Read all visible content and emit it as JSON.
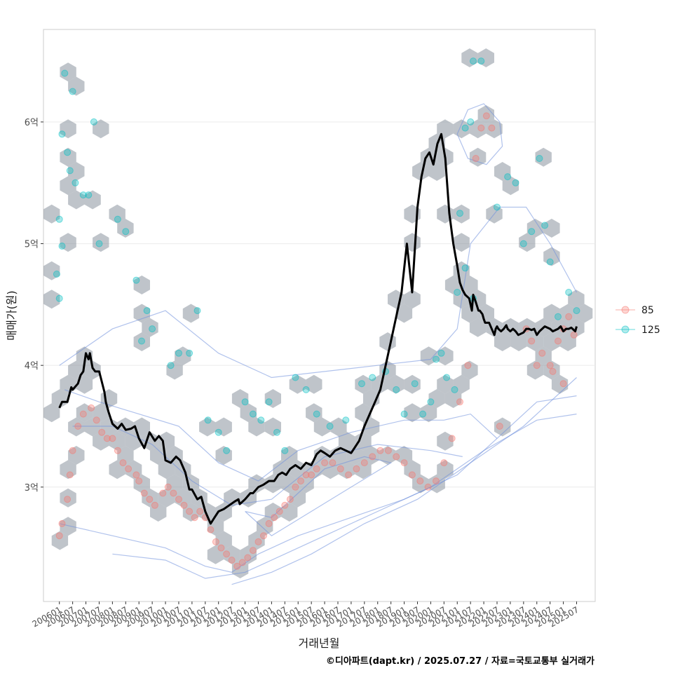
{
  "chart_data": {
    "type": "line",
    "xlabel": "거래년월",
    "ylabel": "매매가(원)",
    "caption": "©디아파트(dapt.kr) / 2025.07.27 / 자료=국토교통부 실거래가",
    "x_ticks": [
      "200601",
      "200607",
      "200701",
      "200707",
      "200801",
      "200807",
      "200901",
      "200907",
      "201001",
      "201007",
      "201101",
      "201107",
      "201201",
      "201207",
      "201301",
      "201307",
      "201401",
      "201407",
      "201501",
      "201507",
      "201601",
      "201607",
      "201701",
      "201707",
      "201801",
      "201807",
      "201901",
      "201907",
      "202001",
      "202007",
      "202101",
      "202107",
      "202201",
      "202207",
      "202301",
      "202307",
      "202401",
      "202407",
      "202501",
      "202507"
    ],
    "y_ticks": [
      {
        "value": 3.0,
        "label": "3억"
      },
      {
        "value": 4.0,
        "label": "4억"
      },
      {
        "value": 5.0,
        "label": "5억"
      },
      {
        "value": 6.0,
        "label": "6억"
      }
    ],
    "xlim": [
      2005.4,
      2026.2
    ],
    "ylim": [
      2.06,
      6.76
    ],
    "grid": true,
    "legend_position": "right",
    "colors": {
      "series_85": "#F8766D",
      "series_125": "#00BFC4",
      "trend": "#000000",
      "hexbin": "#8b949e",
      "contour": "#6f8fdc",
      "grid": "#ebebeb",
      "panel_border": "#cccccc"
    },
    "legend": [
      {
        "label": "85",
        "color": "#F8766D"
      },
      {
        "label": "125",
        "color": "#00BFC4"
      }
    ],
    "trend_line": {
      "x": [
        2006.0,
        2006.1,
        2006.3,
        2006.45,
        2006.5,
        2006.7,
        2006.8,
        2006.9,
        2007.0,
        2007.1,
        2007.15,
        2007.25,
        2007.35,
        2007.5,
        2007.7,
        2007.75,
        2007.85,
        2008.0,
        2008.2,
        2008.35,
        2008.5,
        2008.7,
        2008.85,
        2009.0,
        2009.2,
        2009.4,
        2009.6,
        2009.75,
        2009.9,
        2010.0,
        2010.2,
        2010.4,
        2010.55,
        2010.75,
        2010.9,
        2011.0,
        2011.2,
        2011.35,
        2011.5,
        2011.7,
        2011.85,
        2012.0,
        2012.2,
        2012.4,
        2012.6,
        2012.75,
        2012.8,
        2013.0,
        2013.2,
        2013.3,
        2013.5,
        2013.7,
        2013.9,
        2014.1,
        2014.25,
        2014.4,
        2014.55,
        2014.7,
        2014.9,
        2015.1,
        2015.3,
        2015.5,
        2015.7,
        2015.85,
        2016.0,
        2016.2,
        2016.4,
        2016.6,
        2016.8,
        2017.0,
        2017.3,
        2017.5,
        2017.7,
        2017.9,
        2018.1,
        2018.3,
        2018.5,
        2018.7,
        2018.9,
        2019.1,
        2019.3,
        2019.5,
        2019.65,
        2019.8,
        2019.95,
        2020.1,
        2020.25,
        2020.4,
        2020.55,
        2020.7,
        2020.85,
        2021.0,
        2021.1,
        2021.2,
        2021.3,
        2021.45,
        2021.55,
        2021.6,
        2021.7,
        2021.8,
        2021.85,
        2021.95,
        2022.0,
        2022.05,
        2022.1,
        2022.2,
        2022.3,
        2022.4,
        2022.45,
        2022.5,
        2022.55,
        2022.65,
        2022.75,
        2022.85,
        2022.9,
        2023.0,
        2023.1,
        2023.2,
        2023.3,
        2023.5,
        2023.6,
        2023.7,
        2023.8,
        2023.9,
        2024.0,
        2024.1,
        2024.2,
        2024.3,
        2024.5,
        2024.6,
        2024.8,
        2024.9,
        2025.0,
        2025.1,
        2025.2,
        2025.3,
        2025.45,
        2025.5
      ],
      "y": [
        3.65,
        3.7,
        3.7,
        3.82,
        3.8,
        3.85,
        3.92,
        3.95,
        4.1,
        4.05,
        4.1,
        3.98,
        3.95,
        3.95,
        3.78,
        3.7,
        3.62,
        3.52,
        3.48,
        3.52,
        3.47,
        3.48,
        3.5,
        3.4,
        3.32,
        3.45,
        3.38,
        3.42,
        3.38,
        3.22,
        3.2,
        3.25,
        3.22,
        3.12,
        2.98,
        2.98,
        2.9,
        2.92,
        2.8,
        2.7,
        2.75,
        2.8,
        2.82,
        2.85,
        2.88,
        2.9,
        2.86,
        2.9,
        2.95,
        2.95,
        3.0,
        3.02,
        3.05,
        3.05,
        3.1,
        3.12,
        3.1,
        3.15,
        3.18,
        3.15,
        3.2,
        3.18,
        3.27,
        3.3,
        3.28,
        3.25,
        3.3,
        3.32,
        3.3,
        3.28,
        3.38,
        3.5,
        3.6,
        3.7,
        3.8,
        4.0,
        4.2,
        4.4,
        4.6,
        5.0,
        4.6,
        5.3,
        5.55,
        5.7,
        5.75,
        5.65,
        5.82,
        5.9,
        5.7,
        5.25,
        5.0,
        4.82,
        4.68,
        4.62,
        4.58,
        4.55,
        4.45,
        4.58,
        4.52,
        4.45,
        4.45,
        4.42,
        4.38,
        4.35,
        4.35,
        4.35,
        4.3,
        4.25,
        4.3,
        4.32,
        4.3,
        4.28,
        4.3,
        4.33,
        4.3,
        4.28,
        4.3,
        4.28,
        4.25,
        4.27,
        4.3,
        4.3,
        4.29,
        4.3,
        4.25,
        4.28,
        4.3,
        4.32,
        4.3,
        4.28,
        4.3,
        4.32,
        4.28,
        4.3,
        4.3,
        4.31,
        4.28,
        4.32
      ]
    },
    "series": [
      {
        "name": "85",
        "points": [
          [
            2006.0,
            2.6
          ],
          [
            2006.1,
            2.7
          ],
          [
            2006.3,
            2.9
          ],
          [
            2006.4,
            3.1
          ],
          [
            2006.5,
            3.3
          ],
          [
            2006.7,
            3.5
          ],
          [
            2006.9,
            3.6
          ],
          [
            2007.2,
            3.65
          ],
          [
            2007.4,
            3.55
          ],
          [
            2007.6,
            3.45
          ],
          [
            2007.8,
            3.4
          ],
          [
            2008.0,
            3.4
          ],
          [
            2008.2,
            3.3
          ],
          [
            2008.4,
            3.2
          ],
          [
            2008.6,
            3.15
          ],
          [
            2008.9,
            3.1
          ],
          [
            2009.0,
            3.05
          ],
          [
            2009.2,
            2.95
          ],
          [
            2009.4,
            2.9
          ],
          [
            2009.6,
            2.85
          ],
          [
            2009.9,
            2.95
          ],
          [
            2010.1,
            3.0
          ],
          [
            2010.3,
            2.95
          ],
          [
            2010.5,
            2.9
          ],
          [
            2010.7,
            2.85
          ],
          [
            2010.9,
            2.8
          ],
          [
            2011.1,
            2.75
          ],
          [
            2011.3,
            2.8
          ],
          [
            2011.5,
            2.75
          ],
          [
            2011.7,
            2.65
          ],
          [
            2011.9,
            2.55
          ],
          [
            2012.1,
            2.5
          ],
          [
            2012.3,
            2.45
          ],
          [
            2012.5,
            2.4
          ],
          [
            2012.7,
            2.35
          ],
          [
            2012.9,
            2.38
          ],
          [
            2013.1,
            2.42
          ],
          [
            2013.3,
            2.48
          ],
          [
            2013.5,
            2.55
          ],
          [
            2013.7,
            2.6
          ],
          [
            2013.9,
            2.7
          ],
          [
            2014.1,
            2.75
          ],
          [
            2014.3,
            2.8
          ],
          [
            2014.5,
            2.85
          ],
          [
            2014.7,
            2.9
          ],
          [
            2014.9,
            3.0
          ],
          [
            2015.1,
            3.05
          ],
          [
            2015.3,
            3.1
          ],
          [
            2015.5,
            3.1
          ],
          [
            2015.7,
            3.15
          ],
          [
            2016.0,
            3.2
          ],
          [
            2016.3,
            3.2
          ],
          [
            2016.6,
            3.15
          ],
          [
            2016.9,
            3.1
          ],
          [
            2017.2,
            3.15
          ],
          [
            2017.5,
            3.2
          ],
          [
            2017.8,
            3.25
          ],
          [
            2018.1,
            3.3
          ],
          [
            2018.4,
            3.3
          ],
          [
            2018.7,
            3.25
          ],
          [
            2019.0,
            3.2
          ],
          [
            2019.3,
            3.1
          ],
          [
            2019.6,
            3.05
          ],
          [
            2019.9,
            3.0
          ],
          [
            2020.2,
            3.05
          ],
          [
            2020.5,
            3.2
          ],
          [
            2020.8,
            3.4
          ],
          [
            2021.1,
            3.7
          ],
          [
            2021.4,
            4.0
          ],
          [
            2021.7,
            5.7
          ],
          [
            2021.9,
            5.95
          ],
          [
            2022.1,
            6.05
          ],
          [
            2022.3,
            5.95
          ],
          [
            2022.6,
            3.5
          ],
          [
            2023.6,
            4.3
          ],
          [
            2023.8,
            4.2
          ],
          [
            2024.0,
            4.0
          ],
          [
            2024.2,
            4.1
          ],
          [
            2024.5,
            4.0
          ],
          [
            2024.8,
            4.2
          ],
          [
            2025.0,
            4.3
          ],
          [
            2025.2,
            4.4
          ],
          [
            2025.4,
            4.25
          ],
          [
            2025.0,
            3.85
          ],
          [
            2024.6,
            3.95
          ]
        ]
      },
      {
        "name": "125",
        "points": [
          [
            2006.2,
            6.4
          ],
          [
            2006.5,
            6.25
          ],
          [
            2006.1,
            5.9
          ],
          [
            2006.3,
            5.75
          ],
          [
            2006.4,
            5.6
          ],
          [
            2006.6,
            5.5
          ],
          [
            2006.9,
            5.4
          ],
          [
            2007.1,
            5.4
          ],
          [
            2007.5,
            5.0
          ],
          [
            2007.3,
            6.0
          ],
          [
            2006.0,
            5.2
          ],
          [
            2006.1,
            4.98
          ],
          [
            2005.9,
            4.75
          ],
          [
            2006.0,
            4.55
          ],
          [
            2008.2,
            5.2
          ],
          [
            2008.5,
            5.1
          ],
          [
            2008.9,
            4.7
          ],
          [
            2009.3,
            4.45
          ],
          [
            2009.1,
            4.2
          ],
          [
            2009.5,
            4.3
          ],
          [
            2010.2,
            4.0
          ],
          [
            2010.5,
            4.1
          ],
          [
            2010.9,
            4.1
          ],
          [
            2011.2,
            4.45
          ],
          [
            2011.6,
            3.55
          ],
          [
            2012.0,
            3.45
          ],
          [
            2012.3,
            3.3
          ],
          [
            2013.0,
            3.7
          ],
          [
            2013.3,
            3.6
          ],
          [
            2013.6,
            3.55
          ],
          [
            2013.9,
            3.7
          ],
          [
            2014.2,
            3.45
          ],
          [
            2014.5,
            3.3
          ],
          [
            2014.9,
            3.9
          ],
          [
            2015.3,
            3.8
          ],
          [
            2015.7,
            3.6
          ],
          [
            2016.2,
            3.5
          ],
          [
            2016.8,
            3.55
          ],
          [
            2017.4,
            3.85
          ],
          [
            2017.8,
            3.9
          ],
          [
            2018.3,
            3.95
          ],
          [
            2018.7,
            3.8
          ],
          [
            2019.0,
            3.6
          ],
          [
            2019.4,
            3.85
          ],
          [
            2019.7,
            3.6
          ],
          [
            2020.0,
            3.7
          ],
          [
            2020.2,
            4.05
          ],
          [
            2020.4,
            4.1
          ],
          [
            2020.6,
            3.9
          ],
          [
            2020.9,
            3.8
          ],
          [
            2021.0,
            4.6
          ],
          [
            2021.3,
            4.8
          ],
          [
            2021.6,
            4.55
          ],
          [
            2021.1,
            5.25
          ],
          [
            2021.3,
            5.95
          ],
          [
            2021.5,
            6.0
          ],
          [
            2021.6,
            6.5
          ],
          [
            2021.9,
            6.5
          ],
          [
            2022.5,
            5.3
          ],
          [
            2022.9,
            5.55
          ],
          [
            2023.2,
            5.5
          ],
          [
            2023.5,
            5.0
          ],
          [
            2023.8,
            5.1
          ],
          [
            2024.1,
            5.7
          ],
          [
            2024.3,
            5.15
          ],
          [
            2024.5,
            4.85
          ],
          [
            2024.8,
            4.4
          ],
          [
            2025.2,
            4.6
          ],
          [
            2025.5,
            4.45
          ]
        ]
      }
    ]
  }
}
